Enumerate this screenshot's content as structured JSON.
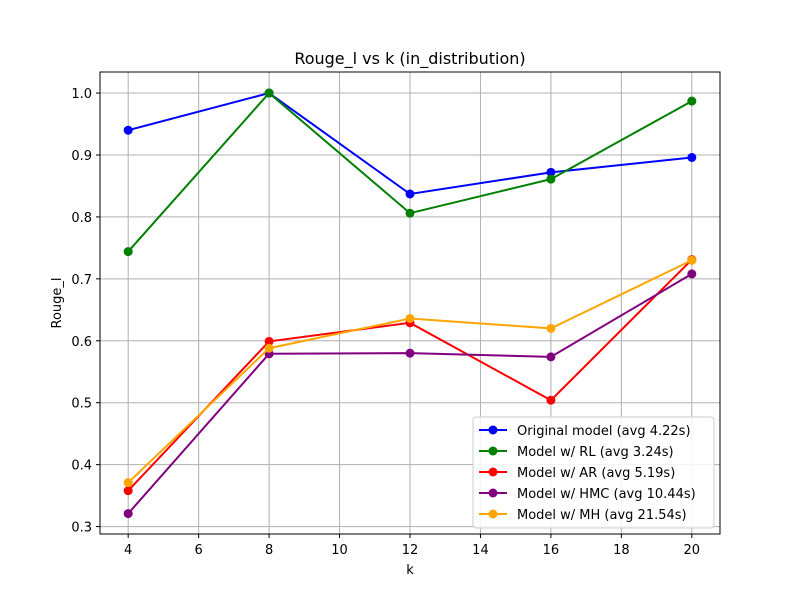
{
  "chart_data": {
    "type": "line",
    "title": "Rouge_l vs k (in_distribution)",
    "xlabel": "k",
    "ylabel": "Rouge_l",
    "x": [
      4,
      8,
      12,
      16,
      20
    ],
    "xlim": [
      3.2,
      20.8
    ],
    "ylim": [
      0.288,
      1.034
    ],
    "xticks": [
      4,
      6,
      8,
      10,
      12,
      14,
      16,
      18,
      20
    ],
    "yticks": [
      0.3,
      0.4,
      0.5,
      0.6,
      0.7,
      0.8,
      0.9,
      1.0
    ],
    "xtick_labels": [
      "4",
      "6",
      "8",
      "10",
      "12",
      "14",
      "16",
      "18",
      "20"
    ],
    "ytick_labels": [
      "0.3",
      "0.4",
      "0.5",
      "0.6",
      "0.7",
      "0.8",
      "0.9",
      "1.0"
    ],
    "grid": true,
    "legend_position": "lower-right",
    "series": [
      {
        "name": "Original model (avg 4.22s)",
        "color": "#0000ff",
        "values": [
          0.94,
          1.0,
          0.837,
          0.872,
          0.896
        ]
      },
      {
        "name": "Model w/ RL (avg 3.24s)",
        "color": "#008000",
        "values": [
          0.744,
          1.0,
          0.806,
          0.861,
          0.987
        ]
      },
      {
        "name": "Model w/ AR (avg 5.19s)",
        "color": "#ff0000",
        "values": [
          0.358,
          0.599,
          0.629,
          0.504,
          0.731
        ]
      },
      {
        "name": "Model w/ HMC (avg 10.44s)",
        "color": "#800080",
        "values": [
          0.321,
          0.579,
          0.58,
          0.574,
          0.708
        ]
      },
      {
        "name": "Model w/ MH (avg 21.54s)",
        "color": "#ffa500",
        "values": [
          0.371,
          0.588,
          0.636,
          0.62,
          0.73
        ]
      }
    ]
  }
}
